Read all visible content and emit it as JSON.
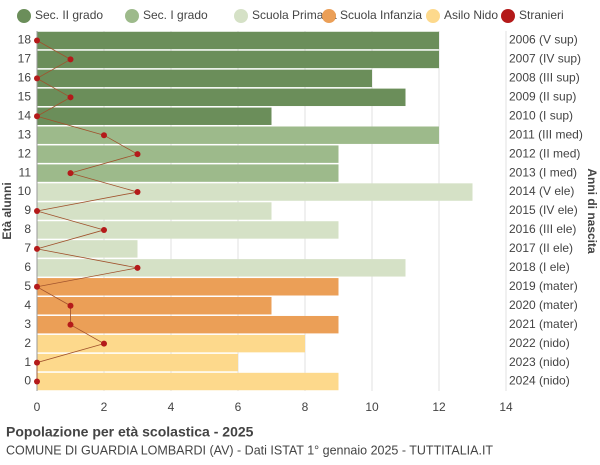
{
  "chart_data": {
    "type": "bar",
    "orientation": "horizontal",
    "title": "Popolazione per età scolastica - 2025",
    "subtitle": "COMUNE DI GUARDIA LOMBARDI (AV) - Dati ISTAT 1° gennaio 2025 - TUTTITALIA.IT",
    "y_label": "Età alunni",
    "y2_label": "Anni di nascita",
    "categories": [
      "0",
      "1",
      "2",
      "3",
      "4",
      "5",
      "6",
      "7",
      "8",
      "9",
      "10",
      "11",
      "12",
      "13",
      "14",
      "15",
      "16",
      "17",
      "18"
    ],
    "right_categories": [
      "2024 (nido)",
      "2023 (nido)",
      "2022 (nido)",
      "2021 (mater)",
      "2020 (mater)",
      "2019 (mater)",
      "2018 (I ele)",
      "2017 (II ele)",
      "2016 (III ele)",
      "2015 (IV ele)",
      "2014 (V ele)",
      "2013 (I med)",
      "2012 (II med)",
      "2011 (III med)",
      "2010 (I sup)",
      "2009 (II sup)",
      "2008 (III sup)",
      "2007 (IV sup)",
      "2006 (V sup)"
    ],
    "series": [
      {
        "name": "Sec. II grado",
        "color": "#6b8e5a",
        "values": [
          null,
          null,
          null,
          null,
          null,
          null,
          null,
          null,
          null,
          null,
          null,
          null,
          null,
          null,
          7,
          11,
          10,
          12,
          12
        ]
      },
      {
        "name": "Sec. I grado",
        "color": "#9dba8b",
        "values": [
          null,
          null,
          null,
          null,
          null,
          null,
          null,
          null,
          null,
          null,
          null,
          9,
          9,
          12,
          null,
          null,
          null,
          null,
          null
        ]
      },
      {
        "name": "Scuola Primaria",
        "color": "#d5e1c6",
        "values": [
          null,
          null,
          null,
          null,
          null,
          null,
          11,
          3,
          9,
          7,
          13,
          null,
          null,
          null,
          null,
          null,
          null,
          null,
          null
        ]
      },
      {
        "name": "Scuola Infanzia",
        "color": "#eb9f57",
        "values": [
          null,
          null,
          null,
          9,
          7,
          9,
          null,
          null,
          null,
          null,
          null,
          null,
          null,
          null,
          null,
          null,
          null,
          null,
          null
        ]
      },
      {
        "name": "Asilo Nido",
        "color": "#fdd98c",
        "values": [
          9,
          6,
          8,
          null,
          null,
          null,
          null,
          null,
          null,
          null,
          null,
          null,
          null,
          null,
          null,
          null,
          null,
          null,
          null
        ]
      },
      {
        "name": "Stranieri",
        "color": "#b41a1a",
        "type": "line",
        "values": [
          0,
          0,
          2,
          1,
          1,
          0,
          3,
          0,
          2,
          0,
          3,
          1,
          3,
          2,
          0,
          1,
          0,
          1,
          0
        ]
      }
    ],
    "xlim": [
      0,
      14
    ],
    "xticks": [
      0,
      2,
      4,
      6,
      8,
      10,
      12,
      14
    ],
    "grid": true
  }
}
